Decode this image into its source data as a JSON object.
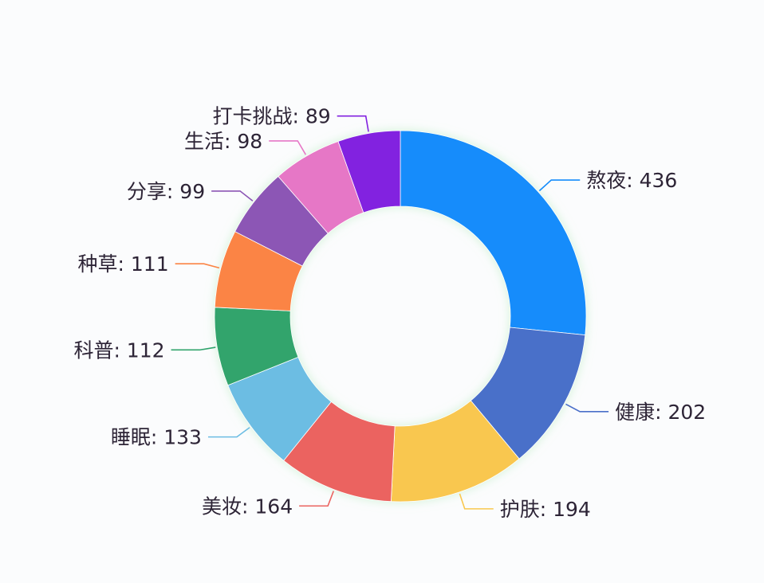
{
  "chart_data": {
    "type": "pie",
    "variant": "donut",
    "title": "",
    "label_format": "{name}: {value}",
    "start_angle_deg": 90,
    "direction": "clockwise",
    "center": [
      502,
      397
    ],
    "outer_radius": 233,
    "inner_radius": 138,
    "total": 1638,
    "slices": [
      {
        "name": "熬夜",
        "value": 436,
        "color": "#168cfb",
        "label": "熬夜: 436"
      },
      {
        "name": "健康",
        "value": 202,
        "color": "#4a6fc9",
        "label": "健康: 202"
      },
      {
        "name": "护肤",
        "value": 194,
        "color": "#f9c74f",
        "label": "护肤: 194"
      },
      {
        "name": "美妆",
        "value": 164,
        "color": "#eb6461",
        "label": "美妆: 164"
      },
      {
        "name": "睡眠",
        "value": 133,
        "color": "#6cbde3",
        "label": "睡眠: 133"
      },
      {
        "name": "科普",
        "value": 112,
        "color": "#30a46c",
        "label": "科普: 112"
      },
      {
        "name": "种草",
        "value": 111,
        "color": "#fb8444",
        "label": "种草: 111"
      },
      {
        "name": "分享",
        "value": 99,
        "color": "#8c56b5",
        "label": "分享: 99"
      },
      {
        "name": "生活",
        "value": 98,
        "color": "#e677c6",
        "label": "生活: 98"
      },
      {
        "name": "打卡挑战",
        "value": 89,
        "color": "#8222e0",
        "label": "打卡挑战: 89"
      }
    ],
    "legend": null
  }
}
